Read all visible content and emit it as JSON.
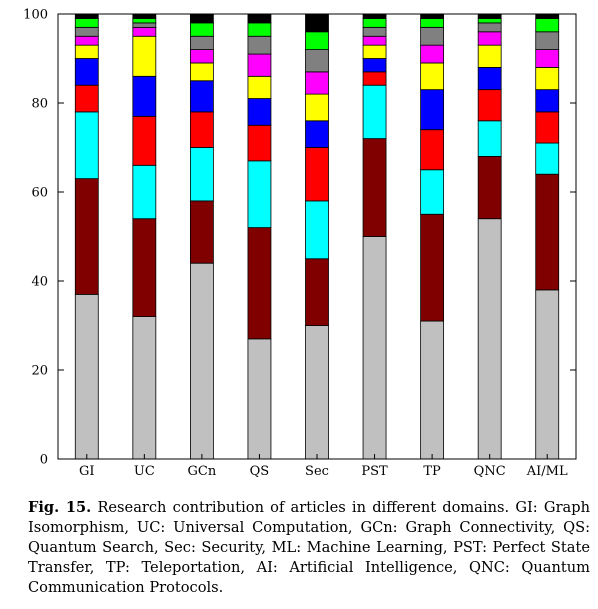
{
  "chart_data": {
    "type": "bar",
    "stacked": true,
    "categories": [
      "GI",
      "UC",
      "GCn",
      "QS",
      "Sec",
      "PST",
      "TP",
      "QNC",
      "AI/ML"
    ],
    "ylim": [
      0,
      100
    ],
    "yticks": [
      0,
      20,
      40,
      60,
      80,
      100
    ],
    "grid": false,
    "legend": "none",
    "segment_colors": [
      "#c0c0c0",
      "#800000",
      "#00ffff",
      "#ff0000",
      "#0000ff",
      "#ffff00",
      "#ff00ff",
      "#808080",
      "#00ff00",
      "#000000"
    ],
    "series": [
      {
        "values": [
          37,
          32,
          44,
          27,
          30,
          50,
          31,
          54,
          38
        ]
      },
      {
        "values": [
          26,
          22,
          14,
          25,
          15,
          22,
          24,
          14,
          26
        ]
      },
      {
        "values": [
          15,
          12,
          12,
          15,
          13,
          12,
          10,
          8,
          7
        ]
      },
      {
        "values": [
          6,
          11,
          8,
          8,
          12,
          3,
          9,
          7,
          7
        ]
      },
      {
        "values": [
          6,
          9,
          7,
          6,
          6,
          3,
          9,
          5,
          5
        ]
      },
      {
        "values": [
          3,
          9,
          4,
          5,
          6,
          3,
          6,
          5,
          5
        ]
      },
      {
        "values": [
          2,
          2,
          3,
          5,
          5,
          2,
          4,
          3,
          4
        ]
      },
      {
        "values": [
          2,
          1,
          3,
          4,
          5,
          2,
          4,
          2,
          4
        ]
      },
      {
        "values": [
          2,
          1,
          3,
          3,
          4,
          2,
          2,
          1,
          3
        ]
      },
      {
        "values": [
          1,
          1,
          2,
          2,
          4,
          1,
          1,
          1,
          1
        ]
      }
    ]
  },
  "caption": {
    "label": "Fig. 15.",
    "text": "Research contribution of articles in different domains. GI: Graph Isomorphism, UC: Universal Computation, GCn: Graph Connectivity, QS: Quantum Search, Sec: Security, ML: Machine Learning, PST: Perfect State Transfer, TP: Teleportation, AI: Artificial Intelligence, QNC: Quantum Communication Protocols."
  }
}
